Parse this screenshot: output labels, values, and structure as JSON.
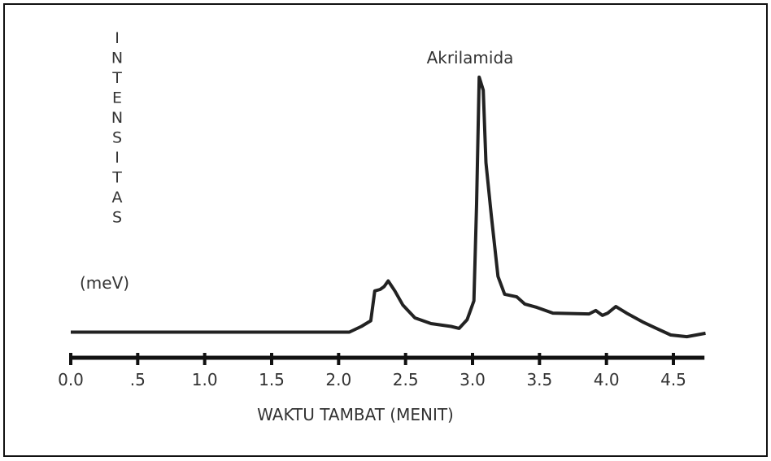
{
  "chart_data": {
    "type": "line",
    "annotation": "Akrilamida",
    "x_label": "WAKTU TAMBAT (MENIT)",
    "y_label": "INTENSITAS",
    "y_unit": "(meV)",
    "color": "#222222",
    "xlim": [
      0,
      4.75
    ],
    "ylim": [
      0,
      100
    ],
    "xticks": [
      {
        "value": 0,
        "label": "0.0"
      },
      {
        "value": 0.5,
        "label": ".5"
      },
      {
        "value": 1,
        "label": "1.0"
      },
      1.5,
      {
        "value": 2,
        "label": "2.0"
      },
      2.5,
      {
        "value": 3,
        "label": "3.0"
      },
      3.5,
      {
        "value": 4,
        "label": "4.0"
      },
      4.5
    ],
    "x": [
      0,
      2.08,
      2.17,
      2.24,
      2.27,
      2.31,
      2.34,
      2.37,
      2.42,
      2.48,
      2.57,
      2.69,
      2.84,
      2.9,
      2.96,
      3.01,
      3.03,
      3.05,
      3.08,
      3.1,
      3.14,
      3.19,
      3.24,
      3.33,
      3.39,
      3.48,
      3.6,
      3.87,
      3.92,
      3.97,
      4.01,
      4.07,
      4.15,
      4.27,
      4.36,
      4.48,
      4.6,
      4.74
    ],
    "values": [
      9,
      9,
      11,
      13,
      23.5,
      24,
      25,
      27,
      23.5,
      18.5,
      14,
      12,
      11,
      10.3,
      13.4,
      20,
      54,
      98.6,
      94,
      68.6,
      50,
      28.6,
      22.3,
      21.4,
      18.9,
      17.7,
      15.7,
      15.4,
      16.6,
      14.9,
      15.7,
      18,
      15.7,
      12.6,
      10.6,
      8,
      7.4,
      8.6
    ]
  }
}
